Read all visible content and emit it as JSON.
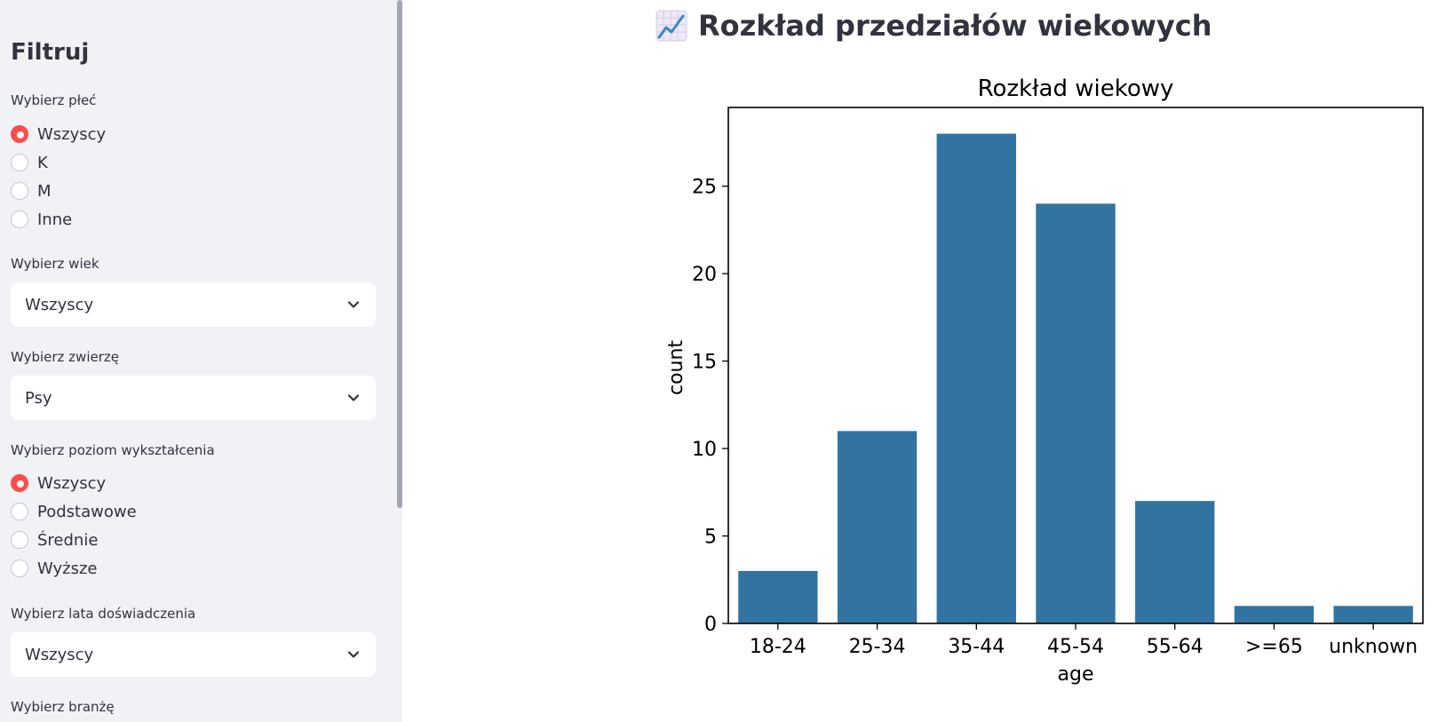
{
  "sidebar": {
    "title": "Filtruj",
    "gender": {
      "label": "Wybierz płeć",
      "options": [
        "Wszyscy",
        "K",
        "M",
        "Inne"
      ],
      "selected": "Wszyscy"
    },
    "age": {
      "label": "Wybierz wiek",
      "value": "Wszyscy"
    },
    "animal": {
      "label": "Wybierz zwierzę",
      "value": "Psy"
    },
    "education": {
      "label": "Wybierz poziom wykształcenia",
      "options": [
        "Wszyscy",
        "Podstawowe",
        "Średnie",
        "Wyższe"
      ],
      "selected": "Wszyscy"
    },
    "experience": {
      "label": "Wybierz lata doświadczenia",
      "value": "Wszyscy"
    },
    "industry": {
      "label": "Wybierz branżę"
    }
  },
  "main": {
    "heading": "Rozkład przedziałów wiekowych",
    "heading_icon": "chart-increasing-icon"
  },
  "colors": {
    "accent": "#ff4b4b",
    "bar": "#3274a1",
    "sidebar_bg": "#f0f2f6"
  },
  "chart_data": {
    "type": "bar",
    "title": "Rozkład wiekowy",
    "xlabel": "age",
    "ylabel": "count",
    "categories": [
      "18-24",
      "25-34",
      "35-44",
      "45-54",
      "55-64",
      ">=65",
      "unknown"
    ],
    "values": [
      3,
      11,
      28,
      24,
      7,
      1,
      1
    ],
    "ylim": [
      0,
      29.5
    ],
    "yticks": [
      0,
      5,
      10,
      15,
      20,
      25
    ],
    "grid": false
  }
}
